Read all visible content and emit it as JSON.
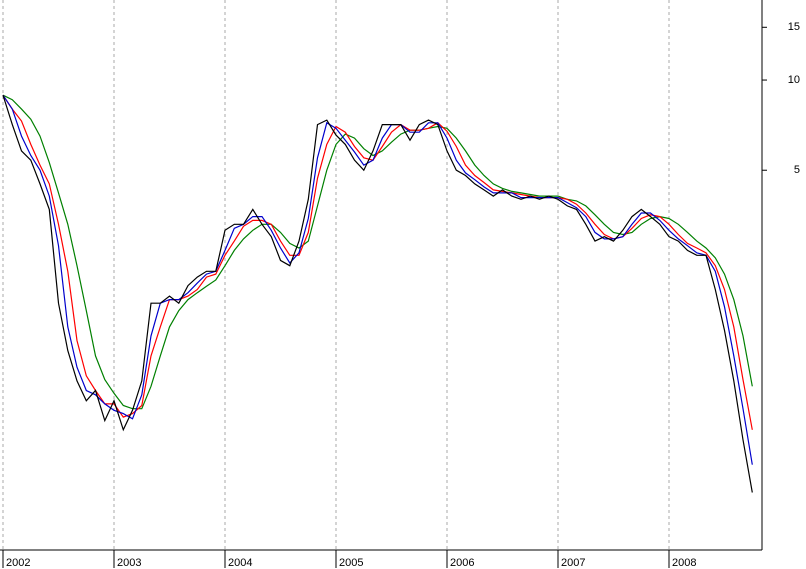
{
  "chart_data": {
    "type": "line",
    "log_scale": true,
    "grid": true,
    "categories": [
      "2002",
      null,
      null,
      null,
      null,
      null,
      null,
      null,
      null,
      null,
      null,
      null,
      "2003",
      null,
      null,
      null,
      null,
      null,
      null,
      null,
      null,
      null,
      null,
      null,
      "2004",
      null,
      null,
      null,
      null,
      null,
      null,
      null,
      null,
      null,
      null,
      null,
      "2005",
      null,
      null,
      null,
      null,
      null,
      null,
      null,
      null,
      null,
      null,
      null,
      "2006",
      null,
      null,
      null,
      null,
      null,
      null,
      null,
      null,
      null,
      null,
      null,
      "2007",
      null,
      null,
      null,
      null,
      null,
      null,
      null,
      null,
      null,
      null,
      null,
      "2008",
      null,
      null,
      null,
      null,
      null,
      null,
      null,
      null,
      null
    ],
    "ylim": [
      0.27,
      18.5
    ],
    "yticks": [
      15,
      10,
      5
    ],
    "series": [
      {
        "color": "#008000",
        "values": [
          8.9,
          8.6,
          8.0,
          7.4,
          6.5,
          5.3,
          4.2,
          3.3,
          2.4,
          1.7,
          1.2,
          1.0,
          0.9,
          0.82,
          0.8,
          0.8,
          0.95,
          1.2,
          1.5,
          1.7,
          1.85,
          1.95,
          2.05,
          2.15,
          2.4,
          2.7,
          2.95,
          3.15,
          3.3,
          3.3,
          3.1,
          2.85,
          2.75,
          2.9,
          3.8,
          5.0,
          6.1,
          6.6,
          6.4,
          5.9,
          5.6,
          5.8,
          6.2,
          6.6,
          6.8,
          6.8,
          6.9,
          7.0,
          6.9,
          6.4,
          5.8,
          5.2,
          4.8,
          4.5,
          4.35,
          4.25,
          4.2,
          4.15,
          4.1,
          4.1,
          4.1,
          4.0,
          3.95,
          3.8,
          3.55,
          3.3,
          3.1,
          3.05,
          3.1,
          3.3,
          3.45,
          3.5,
          3.45,
          3.3,
          3.1,
          2.9,
          2.75,
          2.55,
          2.25,
          1.85,
          1.4,
          0.95
        ]
      },
      {
        "color": "#ff0000",
        "values": [
          8.9,
          8.0,
          7.3,
          6.1,
          5.2,
          4.5,
          3.3,
          2.3,
          1.35,
          1.03,
          0.92,
          0.83,
          0.83,
          0.75,
          0.77,
          0.82,
          1.2,
          1.5,
          1.85,
          1.85,
          1.9,
          2.0,
          2.2,
          2.25,
          2.6,
          2.9,
          3.25,
          3.4,
          3.4,
          3.3,
          2.9,
          2.6,
          2.6,
          3.1,
          4.7,
          6.1,
          7.0,
          6.7,
          6.0,
          5.5,
          5.4,
          6.0,
          6.7,
          7.1,
          6.8,
          6.8,
          6.9,
          7.2,
          6.75,
          6.0,
          5.2,
          4.8,
          4.55,
          4.3,
          4.25,
          4.2,
          4.15,
          4.1,
          4.05,
          4.05,
          4.05,
          4.0,
          3.85,
          3.6,
          3.3,
          3.05,
          2.95,
          3.0,
          3.2,
          3.45,
          3.55,
          3.5,
          3.3,
          3.05,
          2.85,
          2.75,
          2.65,
          2.4,
          2.0,
          1.5,
          1.0,
          0.68
        ]
      },
      {
        "color": "#0000cc",
        "values": [
          8.9,
          8.0,
          6.5,
          5.6,
          5.0,
          4.1,
          2.8,
          1.5,
          1.1,
          0.92,
          0.89,
          0.83,
          0.79,
          0.77,
          0.74,
          0.89,
          1.4,
          1.8,
          1.85,
          1.85,
          1.95,
          2.1,
          2.25,
          2.3,
          2.7,
          3.2,
          3.3,
          3.5,
          3.5,
          3.15,
          2.75,
          2.45,
          2.65,
          3.45,
          5.5,
          7.2,
          6.9,
          6.3,
          5.75,
          5.2,
          5.4,
          6.4,
          7.1,
          7.1,
          6.7,
          6.7,
          7.2,
          7.2,
          6.4,
          5.4,
          4.9,
          4.65,
          4.4,
          4.2,
          4.2,
          4.2,
          4.05,
          4.05,
          4.05,
          4.05,
          4.05,
          3.9,
          3.75,
          3.5,
          3.1,
          2.95,
          2.95,
          3.0,
          3.3,
          3.6,
          3.6,
          3.4,
          3.15,
          2.95,
          2.8,
          2.65,
          2.6,
          2.3,
          1.75,
          1.2,
          0.8,
          0.52
        ]
      },
      {
        "color": "#000000",
        "values": [
          8.9,
          7.1,
          5.8,
          5.4,
          4.5,
          3.7,
          1.8,
          1.25,
          0.99,
          0.85,
          0.92,
          0.73,
          0.85,
          0.68,
          0.79,
          0.99,
          1.8,
          1.8,
          1.9,
          1.8,
          2.06,
          2.2,
          2.3,
          2.3,
          3.15,
          3.3,
          3.3,
          3.7,
          3.3,
          3.0,
          2.5,
          2.4,
          2.9,
          4.0,
          7.1,
          7.35,
          6.55,
          6.1,
          5.4,
          5.0,
          5.8,
          7.1,
          7.1,
          7.1,
          6.3,
          7.1,
          7.35,
          7.1,
          5.8,
          5.0,
          4.8,
          4.5,
          4.3,
          4.1,
          4.3,
          4.1,
          4.0,
          4.1,
          4.0,
          4.1,
          4.0,
          3.8,
          3.7,
          3.3,
          2.9,
          3.0,
          2.9,
          3.15,
          3.5,
          3.7,
          3.5,
          3.3,
          3.0,
          2.9,
          2.7,
          2.6,
          2.6,
          2.0,
          1.46,
          0.99,
          0.63,
          0.42
        ]
      }
    ]
  }
}
